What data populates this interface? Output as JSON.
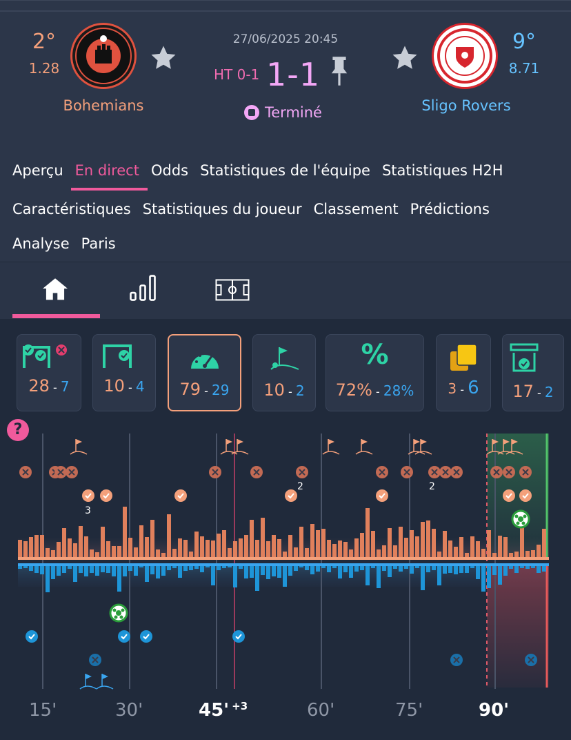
{
  "match": {
    "datetime": "27/06/2025 20:45",
    "halftime": "HT 0-1",
    "score": "1-1",
    "status": "Terminé"
  },
  "home": {
    "rank": "2°",
    "rating": "1.28",
    "name": "Bohemians",
    "color": "#f4a07b"
  },
  "away": {
    "rank": "9°",
    "rating": "8.71",
    "name": "Sligo Rovers",
    "color": "#3aa5ef"
  },
  "nav": {
    "row1": [
      "Aperçu",
      "En direct",
      "Odds",
      "Statistiques de l'équipe",
      "Statistiques H2H"
    ],
    "row2": [
      "Caractéristiques",
      "Statistiques du joueur",
      "Classement",
      "Prédictions"
    ],
    "row3": [
      "Analyse",
      "Paris"
    ],
    "active": "En direct"
  },
  "tabs": [
    "home-icon",
    "stats-bars-icon",
    "pitch-icon"
  ],
  "stats": [
    {
      "icon": "shots-icon",
      "home": "28",
      "away": "7"
    },
    {
      "icon": "shots-on-target-icon",
      "home": "10",
      "away": "4"
    },
    {
      "icon": "attacks-gauge-icon",
      "home": "79",
      "away": "29",
      "selected": true
    },
    {
      "icon": "corner-flag-icon",
      "home": "10",
      "away": "2"
    },
    {
      "icon": "possession-percent-icon",
      "home": "72%",
      "away": "28%"
    },
    {
      "icon": "cards-icon",
      "home": "3",
      "away": "6"
    },
    {
      "icon": "saves-icon",
      "home": "17",
      "away": "2"
    }
  ],
  "timeline": {
    "labels": [
      "15'",
      "30'",
      "45'",
      "60'",
      "75'",
      "90'"
    ],
    "added_time": "+3",
    "badges": [
      "3",
      "2",
      "2"
    ]
  }
}
